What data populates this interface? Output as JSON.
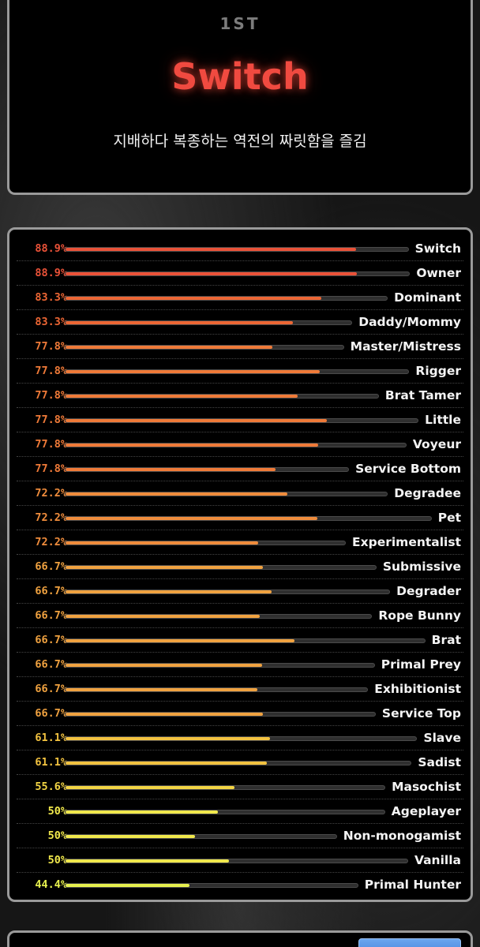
{
  "result": {
    "rank": "1ST",
    "title": "Switch",
    "description": "지배하다 복종하는 역전의 짜릿함을 즐김"
  },
  "scores": [
    {
      "pct": "88.9%",
      "label": "Switch",
      "value": 0.889,
      "color": "#ea5238"
    },
    {
      "pct": "88.9%",
      "label": "Owner",
      "value": 0.889,
      "color": "#ea5238"
    },
    {
      "pct": "83.3%",
      "label": "Dominant",
      "value": 0.833,
      "color": "#ec6634"
    },
    {
      "pct": "83.3%",
      "label": "Daddy/Mommy",
      "value": 0.833,
      "color": "#ec6634"
    },
    {
      "pct": "77.8%",
      "label": "Master/Mistress",
      "value": 0.778,
      "color": "#ef7a38"
    },
    {
      "pct": "77.8%",
      "label": "Rigger",
      "value": 0.778,
      "color": "#ef7a38"
    },
    {
      "pct": "77.8%",
      "label": "Brat Tamer",
      "value": 0.778,
      "color": "#ef7a38"
    },
    {
      "pct": "77.8%",
      "label": "Little",
      "value": 0.778,
      "color": "#ef7a38"
    },
    {
      "pct": "77.8%",
      "label": "Voyeur",
      "value": 0.778,
      "color": "#ef7a38"
    },
    {
      "pct": "77.8%",
      "label": "Service Bottom",
      "value": 0.778,
      "color": "#ef7a38"
    },
    {
      "pct": "72.2%",
      "label": "Degradee",
      "value": 0.722,
      "color": "#ef8c3c"
    },
    {
      "pct": "72.2%",
      "label": "Pet",
      "value": 0.722,
      "color": "#ef8c3c"
    },
    {
      "pct": "72.2%",
      "label": "Experimentalist",
      "value": 0.722,
      "color": "#ef8c3c"
    },
    {
      "pct": "66.7%",
      "label": "Submissive",
      "value": 0.667,
      "color": "#f0a240"
    },
    {
      "pct": "66.7%",
      "label": "Degrader",
      "value": 0.667,
      "color": "#f0a240"
    },
    {
      "pct": "66.7%",
      "label": "Rope Bunny",
      "value": 0.667,
      "color": "#f0a240"
    },
    {
      "pct": "66.7%",
      "label": "Brat",
      "value": 0.667,
      "color": "#f0a240"
    },
    {
      "pct": "66.7%",
      "label": "Primal Prey",
      "value": 0.667,
      "color": "#f0a240"
    },
    {
      "pct": "66.7%",
      "label": "Exhibitionist",
      "value": 0.667,
      "color": "#f0a240"
    },
    {
      "pct": "66.7%",
      "label": "Service Top",
      "value": 0.667,
      "color": "#f0a240"
    },
    {
      "pct": "61.1%",
      "label": "Slave",
      "value": 0.611,
      "color": "#f2c240"
    },
    {
      "pct": "61.1%",
      "label": "Sadist",
      "value": 0.611,
      "color": "#f2c240"
    },
    {
      "pct": "55.6%",
      "label": "Masochist",
      "value": 0.556,
      "color": "#f2d444"
    },
    {
      "pct": "50%",
      "label": "Ageplayer",
      "value": 0.5,
      "color": "#f0e84c"
    },
    {
      "pct": "50%",
      "label": "Non-monogamist",
      "value": 0.5,
      "color": "#f0e84c"
    },
    {
      "pct": "50%",
      "label": "Vanilla",
      "value": 0.5,
      "color": "#f0e84c"
    },
    {
      "pct": "44.4%",
      "label": "Primal Hunter",
      "value": 0.444,
      "color": "#e6f04e"
    }
  ]
}
